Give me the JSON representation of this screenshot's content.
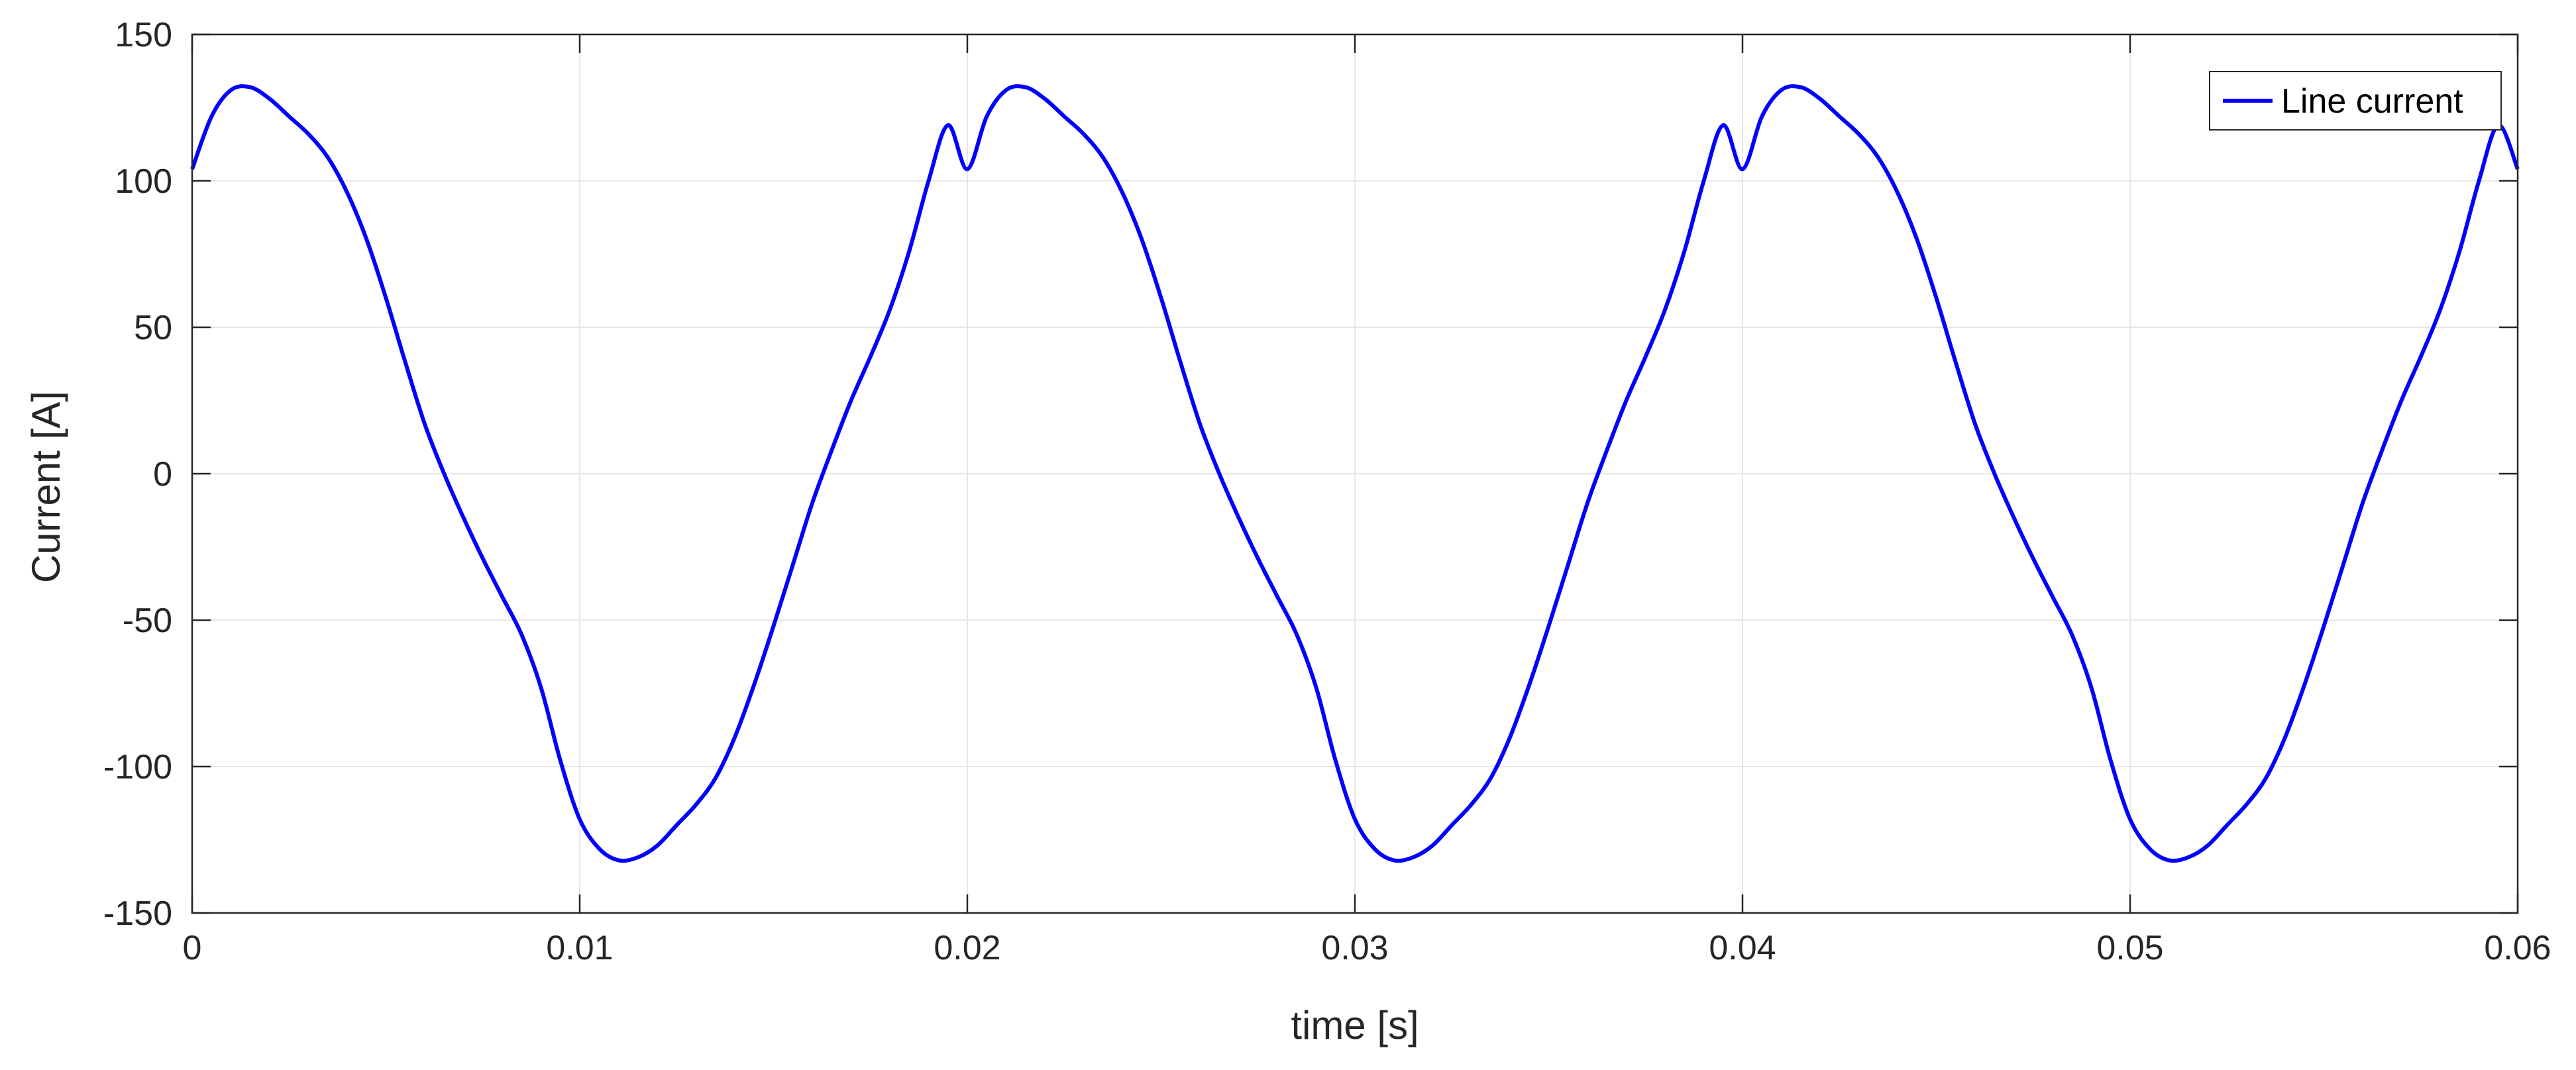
{
  "chart_data": {
    "type": "line",
    "title": "",
    "xlabel": "time [s]",
    "ylabel": "Current [A]",
    "xlim": [
      0,
      0.06
    ],
    "ylim": [
      -150,
      150
    ],
    "xticks": [
      0,
      0.01,
      0.02,
      0.03,
      0.04,
      0.05,
      0.06
    ],
    "xtick_labels": [
      "0",
      "0.01",
      "0.02",
      "0.03",
      "0.04",
      "0.05",
      "0.06"
    ],
    "yticks": [
      -150,
      -100,
      -50,
      0,
      50,
      100,
      150
    ],
    "ytick_labels": [
      "-150",
      "-100",
      "-50",
      "0",
      "50",
      "100",
      "150"
    ],
    "grid": true,
    "legend_position": "top-right",
    "series": [
      {
        "name": "Line current",
        "color": "#0000ff",
        "x": [
          0,
          0.0005,
          0.001,
          0.0015,
          0.002,
          0.0025,
          0.003,
          0.0035,
          0.004,
          0.0045,
          0.005,
          0.0055,
          0.006,
          0.0065,
          0.007,
          0.0075,
          0.008,
          0.0085,
          0.009,
          0.0095,
          0.01,
          0.0105,
          0.011,
          0.0115,
          0.012,
          0.0125,
          0.013,
          0.0135,
          0.014,
          0.0145,
          0.015,
          0.0155,
          0.016,
          0.0165,
          0.017,
          0.0175,
          0.018,
          0.0185,
          0.019,
          0.0195,
          0.02
        ],
        "values": [
          104,
          122,
          131,
          132,
          128,
          122,
          116,
          108,
          96,
          80,
          60,
          38,
          17,
          0,
          -15,
          -29,
          -42,
          -55,
          -73,
          -98,
          -118,
          -128,
          -132,
          -131,
          -127,
          -120,
          -113,
          -104,
          -90,
          -72,
          -52,
          -31,
          -10,
          8,
          25,
          40,
          56,
          76,
          100,
          119,
          104
        ]
      }
    ]
  }
}
